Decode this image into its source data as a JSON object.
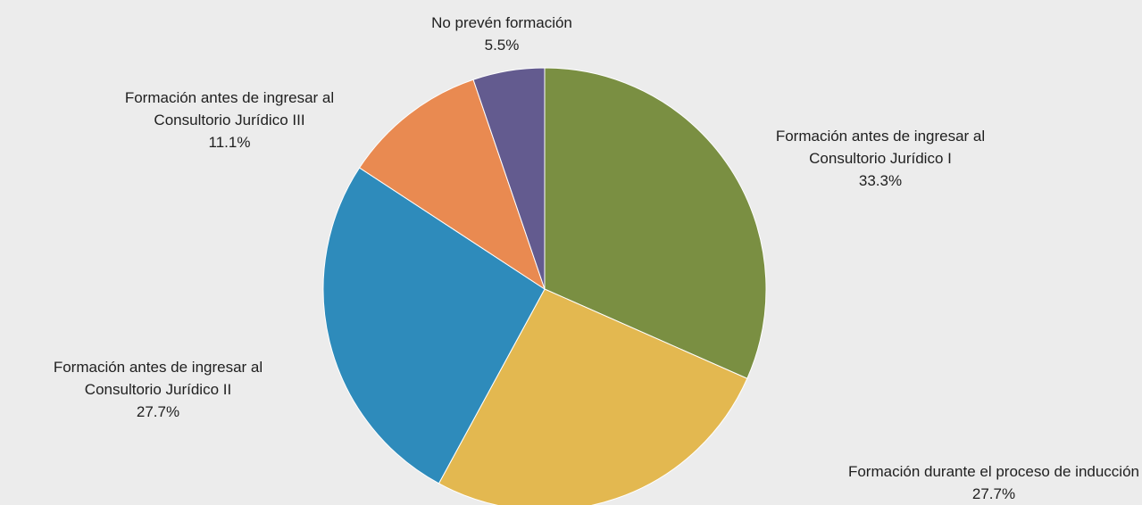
{
  "chart_data": {
    "type": "pie",
    "start_angle_deg": 0,
    "direction": "clockwise",
    "legend": "none",
    "slices": [
      {
        "line1": "Formación antes de ingresar al",
        "line2": "Consultorio Jurídico I",
        "percent": "33.3%",
        "value": 33.3,
        "color": "#7a8f42"
      },
      {
        "line1": "Formación durante el proceso de inducción",
        "line2": "",
        "percent": "27.7%",
        "value": 27.7,
        "color": "#e3b850"
      },
      {
        "line1": "Formación antes de ingresar al",
        "line2": "Consultorio Jurídico II",
        "percent": "27.7%",
        "value": 27.7,
        "color": "#2e8bbb"
      },
      {
        "line1": "Formación antes de ingresar al",
        "line2": "Consultorio Jurídico III",
        "percent": "11.1%",
        "value": 11.1,
        "color": "#e98a51"
      },
      {
        "line1": "No prevén formación",
        "line2": "",
        "percent": "5.5%",
        "value": 5.5,
        "color": "#635b8f"
      }
    ]
  }
}
